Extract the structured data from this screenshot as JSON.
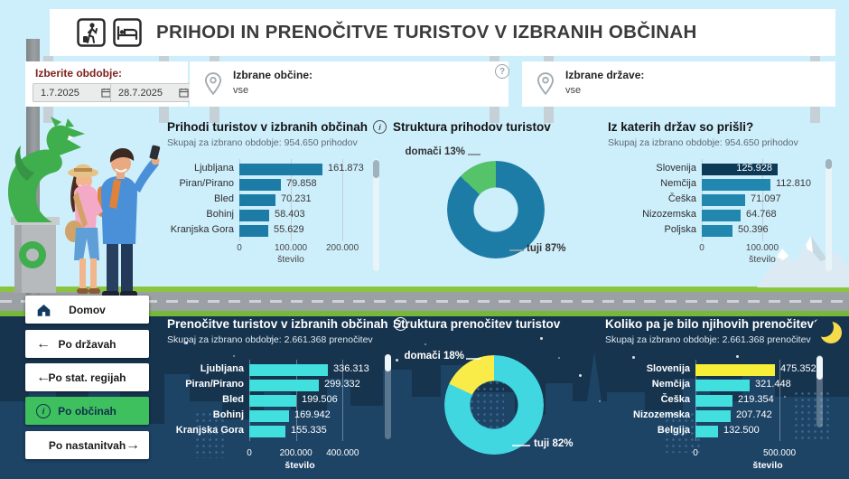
{
  "header": {
    "title": "PRIHODI IN PRENOČITVE TURISTOV V IZBRANIH OBČINAH"
  },
  "filters": {
    "period_label": "Izberite obdobje:",
    "date_from": "1.7.2025",
    "date_to": "28.7.2025",
    "municipalities_label": "Izbrane občine:",
    "municipalities_value": "vse",
    "countries_label": "Izbrane države:",
    "countries_value": "vse",
    "help_symbol": "?"
  },
  "menu": [
    {
      "label": "Domov",
      "icon": "home-icon",
      "active": false
    },
    {
      "label": "Po državah",
      "icon": "arrow-left-icon",
      "active": false
    },
    {
      "label": "Po stat. regijah",
      "icon": "arrow-left-icon",
      "active": false
    },
    {
      "label": "Po občinah",
      "icon": "info-icon",
      "active": true
    },
    {
      "label": "Po nastanitvah",
      "icon": "arrow-right-icon",
      "active": false
    }
  ],
  "colors": {
    "accent_blue": "#1d7ca6",
    "country_blue": "#2287af",
    "dark_blue_bar": "#0d3a57",
    "cyan": "#41e0de",
    "yellow": "#f7ee38",
    "green": "#54c369",
    "menu_active_green": "#3ec05e",
    "night_bg": "#17344f",
    "light_bg": "#cdeefb"
  },
  "charts": {
    "arrivals": {
      "type": "bar",
      "title": "Prihodi turistov v izbranih občinah",
      "subtitle": "Skupaj za izbrano obdobje: 954.650 prihodov",
      "categories": [
        "Ljubljana",
        "Piran/Pirano",
        "Bled",
        "Bohinj",
        "Kranjska Gora"
      ],
      "values": [
        161873,
        79858,
        70231,
        58403,
        55629
      ],
      "value_labels": [
        "161.873",
        "79.858",
        "70.231",
        "58.403",
        "55.629"
      ],
      "bar_color": "#1d7ca6",
      "xlabel": "število",
      "axis_max": 263000,
      "ticks": [
        {
          "label": "0",
          "value": 0
        },
        {
          "label": "100.000",
          "value": 100000
        },
        {
          "label": "200.000",
          "value": 200000
        }
      ]
    },
    "arrivals_structure": {
      "type": "donut",
      "title": "Struktura prihodov turistov",
      "slices": [
        {
          "label": "tuji",
          "pct": 87,
          "color": "#1d7ca6"
        },
        {
          "label": "domači",
          "pct": 13,
          "color": "#54c369"
        }
      ],
      "labels": [
        "domači 13%",
        "tuji 87%"
      ]
    },
    "arrivals_countries": {
      "type": "bar",
      "title": "Iz katerih držav so prišli?",
      "subtitle": "Skupaj za izbrano obdobje: 954.650 prihodov",
      "categories": [
        "Slovenija",
        "Nemčija",
        "Češka",
        "Nizozemska",
        "Poljska"
      ],
      "values": [
        125928,
        112810,
        71097,
        64768,
        50396
      ],
      "value_labels": [
        "125.928",
        "112.810",
        "71.097",
        "64.768",
        "50.396"
      ],
      "bar_colors": [
        "#0d3a57",
        "#2287af",
        "#2287af",
        "#2287af",
        "#2287af"
      ],
      "value_inside_index": 0,
      "xlabel": "število",
      "axis_max": 209000,
      "ticks": [
        {
          "label": "0",
          "value": 0
        },
        {
          "label": "100.000",
          "value": 100000
        }
      ]
    },
    "overnights": {
      "type": "bar",
      "title": "Prenočitve turistov v izbranih občinah",
      "subtitle": "Skupaj za izbrano obdobje: 2.661.368 prenočitev",
      "categories": [
        "Ljubljana",
        "Piran/Pirano",
        "Bled",
        "Bohinj",
        "Kranjska Gora"
      ],
      "values": [
        336313,
        299332,
        199506,
        169942,
        155335
      ],
      "value_labels": [
        "336.313",
        "299.332",
        "199.506",
        "169.942",
        "155.335"
      ],
      "bar_color": "#41e0de",
      "xlabel": "število",
      "axis_max": 600000,
      "ticks": [
        {
          "label": "0",
          "value": 0
        },
        {
          "label": "200.000",
          "value": 200000
        },
        {
          "label": "400.000",
          "value": 400000
        }
      ]
    },
    "overnights_structure": {
      "type": "donut",
      "title": "Struktura prenočitev turistov",
      "slices": [
        {
          "label": "tuji",
          "pct": 82,
          "color": "#41d7e0"
        },
        {
          "label": "domači",
          "pct": 18,
          "color": "#f9ec49"
        }
      ],
      "labels": [
        "domači 18%",
        "tuji 82%"
      ]
    },
    "overnights_countries": {
      "type": "bar",
      "title": "Koliko pa je bilo njihovih prenočitev?",
      "subtitle": "Skupaj za izbrano obdobje: 2.661.368 prenočitev",
      "categories": [
        "Slovenija",
        "Nemčija",
        "Češka",
        "Nizozemska",
        "Belgija"
      ],
      "values": [
        475352,
        321448,
        219354,
        207742,
        132500
      ],
      "value_labels": [
        "475.352",
        "321.448",
        "219.354",
        "207.742",
        "132.500"
      ],
      "bar_colors": [
        "#f7ee38",
        "#41e0de",
        "#41e0de",
        "#41e0de",
        "#41e0de"
      ],
      "xlabel": "število",
      "axis_max": 806000,
      "ticks": [
        {
          "label": "0",
          "value": 0
        },
        {
          "label": "500.000",
          "value": 500000
        }
      ]
    }
  }
}
